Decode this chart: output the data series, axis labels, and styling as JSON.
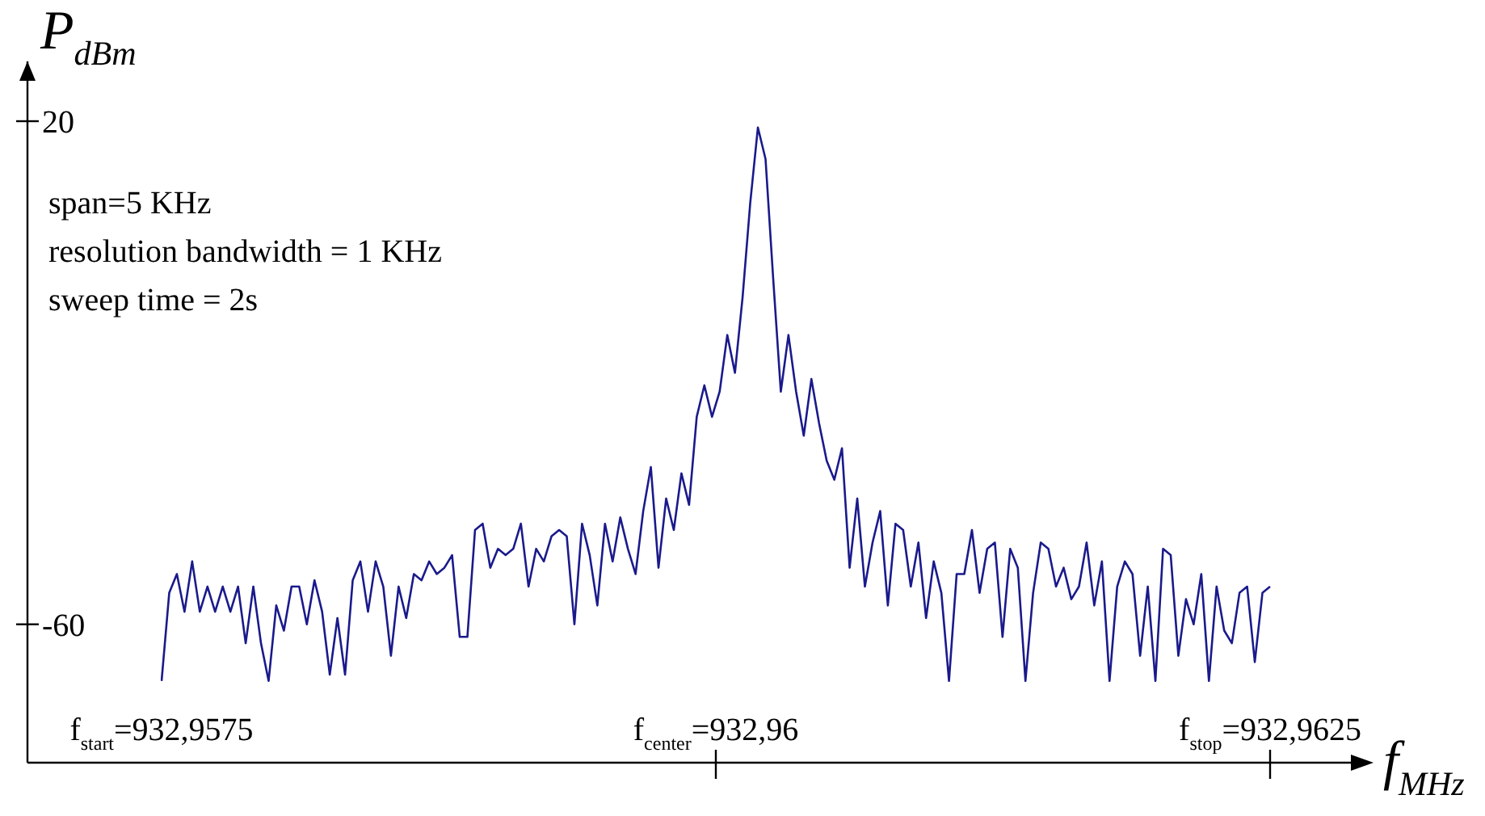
{
  "chart_data": {
    "type": "line",
    "xlabel": "f$_{MHz}$",
    "ylabel": "P$_{dBm}$",
    "annotations": [
      "span=5 KHz",
      "resolution bandwidth = 1 KHz",
      "sweep time = 2s",
      "f$_{start}$=932,9575",
      "f$_{center}$=932,96",
      "f$_{stop}$=932,9625"
    ],
    "categories": [
      null,
      null,
      null,
      null,
      null,
      null,
      null,
      null,
      null,
      null,
      null,
      null,
      null,
      null,
      null,
      null,
      null,
      null,
      null,
      null,
      null,
      null,
      null,
      null,
      null,
      null,
      null,
      null,
      null,
      null,
      null,
      null,
      null,
      null,
      null,
      null,
      null,
      null,
      null,
      null,
      null,
      null,
      null,
      null,
      null,
      null,
      null,
      null,
      null,
      null,
      null,
      null,
      null,
      null,
      null,
      null,
      null,
      null,
      null,
      null,
      null,
      null,
      null,
      null,
      null,
      null,
      null,
      null,
      null,
      null,
      null,
      null,
      null,
      null,
      null,
      null,
      null,
      null,
      null,
      null,
      null,
      null,
      null,
      null,
      null,
      null,
      null,
      null,
      null,
      null,
      null,
      null,
      null,
      null,
      null,
      null,
      null,
      null,
      null,
      null,
      null,
      null,
      null,
      null,
      null,
      null,
      null,
      null,
      null,
      null,
      null,
      null,
      null,
      null,
      null,
      null,
      null,
      null,
      null,
      null,
      null,
      null,
      null,
      null,
      null,
      null,
      null,
      null,
      null,
      null,
      null,
      null,
      null,
      null,
      null,
      null,
      null,
      null,
      null,
      null,
      null,
      null,
      null,
      null,
      null,
      null
    ],
    "series": [
      {
        "color": "#1a1a8c",
        "values": [
          -69,
          -55,
          -52,
          -58,
          -50,
          -58,
          -54,
          -58,
          -54,
          -58,
          -54,
          -63,
          -54,
          -63,
          -69,
          -57,
          -61,
          -54,
          -54,
          -60,
          -53,
          -58,
          -68,
          -59,
          -68,
          -53,
          -50,
          -58,
          -50,
          -54,
          -65,
          -54,
          -59,
          -52,
          -53,
          -50,
          -52,
          -51,
          -49,
          -62,
          -62,
          -45,
          -44,
          -51,
          -48,
          -49,
          -48,
          -44,
          -54,
          -48,
          -50,
          -46,
          -45,
          -46,
          -60,
          -44,
          -49,
          -57,
          -44,
          -50,
          -43,
          -48,
          -52,
          -42,
          -35,
          -51,
          -40,
          -45,
          -36,
          -41,
          -27,
          -22,
          -27,
          -23,
          -14,
          -20,
          -8,
          7,
          19,
          14,
          -5,
          -23,
          -14,
          -23,
          -30,
          -21,
          -28,
          -34,
          -37,
          -32,
          -51,
          -40,
          -54,
          -47,
          -42,
          -57,
          -44,
          -45,
          -54,
          -47,
          -59,
          -50,
          -55,
          -69,
          -52,
          -52,
          -45,
          -55,
          -48,
          -47,
          -62,
          -48,
          -51,
          -69,
          -55,
          -47,
          -48,
          -54,
          -51,
          -56,
          -54,
          -47,
          -57,
          -50,
          -69,
          -54,
          -50,
          -52,
          -65,
          -54,
          -69,
          -48,
          -49,
          -65,
          -56,
          -60,
          -52,
          -69,
          -54,
          -61,
          -63,
          -55,
          -54,
          -66,
          -55,
          -54
        ]
      }
    ],
    "ylim": [
      -82,
      20
    ],
    "yticks": [
      20,
      -60
    ],
    "grid": false,
    "legend": false,
    "marker": "none",
    "line_style": "solid"
  }
}
